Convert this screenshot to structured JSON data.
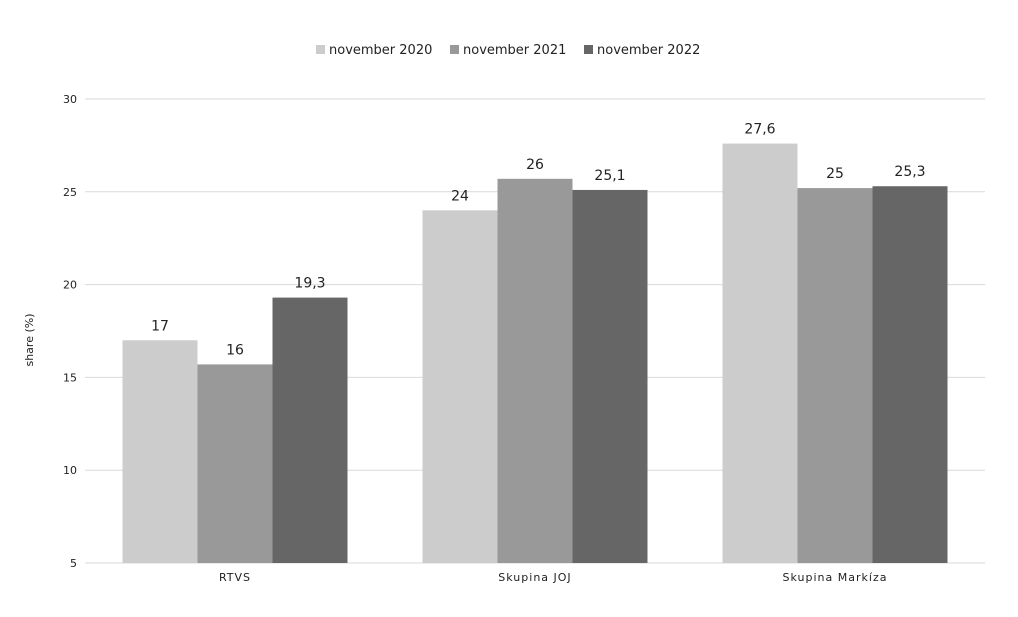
{
  "chart_data": {
    "type": "bar",
    "ylabel": "share (%)",
    "ylim": [
      5,
      30
    ],
    "yticks": [
      5,
      10,
      15,
      20,
      25,
      30
    ],
    "grid": true,
    "legend_position": "top-center",
    "categories": [
      "RTVS",
      "Skupina JOJ",
      "Skupina Markíza"
    ],
    "series": [
      {
        "name": "november 2020",
        "color": "#cccccc",
        "values": [
          17,
          24,
          27.6
        ],
        "labels": [
          "17",
          "24",
          "27,6"
        ]
      },
      {
        "name": "november 2021",
        "color": "#999999",
        "values": [
          15.7,
          25.7,
          25.2
        ],
        "labels": [
          "16",
          "26",
          "25"
        ]
      },
      {
        "name": "november 2022",
        "color": "#666666",
        "values": [
          19.3,
          25.1,
          25.3
        ],
        "labels": [
          "19,3",
          "25,1",
          "25,3"
        ]
      }
    ]
  }
}
